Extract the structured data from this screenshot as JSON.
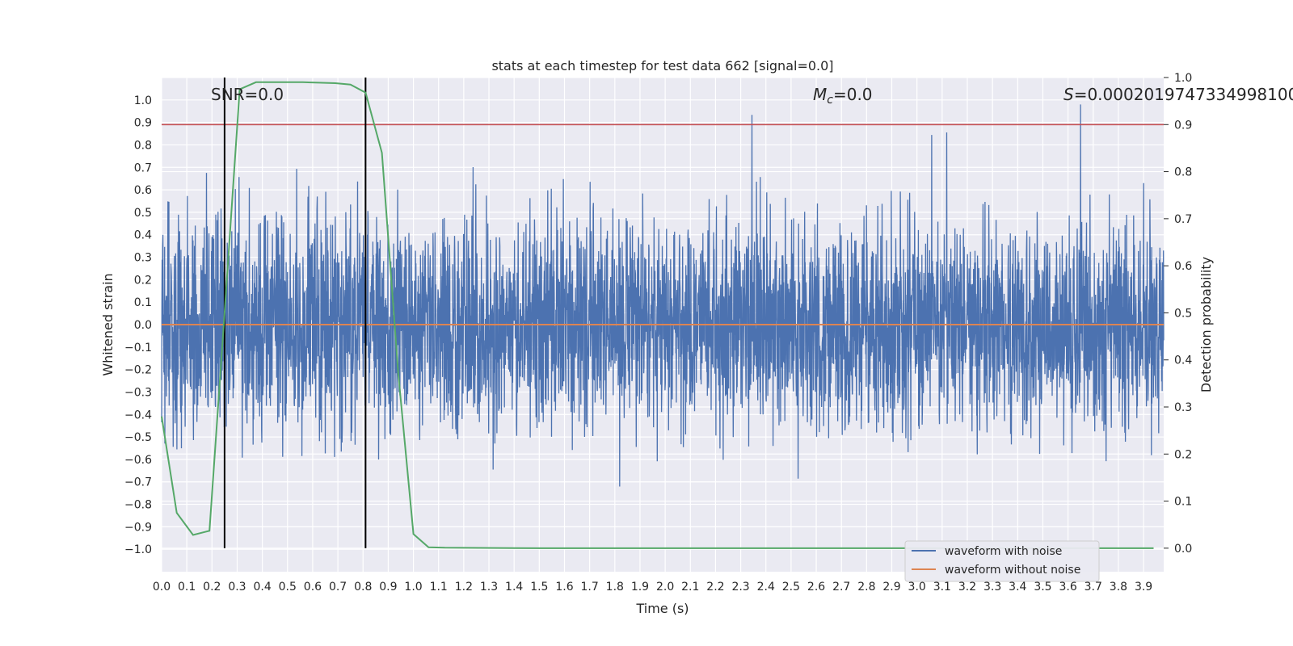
{
  "chart_data": {
    "type": "line",
    "title": "stats at each timestep for test data 662 [signal=0.0]",
    "xlabel": "Time (s)",
    "ylabel": "Whitened strain",
    "y2label": "Detection probability",
    "xlim": [
      0.0,
      3.98
    ],
    "ylim": [
      -1.1,
      1.1
    ],
    "y2lim": [
      -0.05,
      1.0
    ],
    "x_ticks": [
      "0.0",
      "0.1",
      "0.2",
      "0.3",
      "0.4",
      "0.5",
      "0.6",
      "0.7",
      "0.8",
      "0.9",
      "1.0",
      "1.1",
      "1.2",
      "1.3",
      "1.4",
      "1.5",
      "1.6",
      "1.7",
      "1.8",
      "1.9",
      "2.0",
      "2.1",
      "2.2",
      "2.3",
      "2.4",
      "2.5",
      "2.6",
      "2.7",
      "2.8",
      "2.9",
      "3.0",
      "3.1",
      "3.2",
      "3.3",
      "3.4",
      "3.5",
      "3.6",
      "3.7",
      "3.8",
      "3.9"
    ],
    "y_ticks": [
      "1.0",
      "0.9",
      "0.8",
      "0.7",
      "0.6",
      "0.5",
      "0.4",
      "0.3",
      "0.2",
      "0.1",
      "0.0",
      "−0.1",
      "−0.2",
      "−0.3",
      "−0.4",
      "−0.5",
      "−0.6",
      "−0.7",
      "−0.8",
      "−0.9",
      "−1.0"
    ],
    "y2_ticks": [
      "1.0",
      "0.9",
      "0.8",
      "0.7",
      "0.6",
      "0.5",
      "0.4",
      "0.3",
      "0.2",
      "0.1",
      "0.0"
    ],
    "annotations": {
      "snr": "SNR=0.0",
      "mc_symbol": "M",
      "mc_sub": "c",
      "mc_value": "=0.0",
      "s_symbol": "S",
      "s_value": "=0.0002019747334998100"
    },
    "threshold": 0.9,
    "vlines": [
      0.25,
      0.81
    ],
    "noise_amplitude": 0.35,
    "series": [
      {
        "name": "waveform with noise",
        "color": "#4c72b0",
        "axis": "left"
      },
      {
        "name": "waveform without noise",
        "color": "#dd8452",
        "axis": "left",
        "value": 0.0
      },
      {
        "name": "detection probability",
        "color": "#55a868",
        "axis": "right",
        "x": [
          0.0,
          0.06,
          0.125,
          0.19,
          0.25,
          0.31,
          0.375,
          0.44,
          0.5,
          0.56,
          0.625,
          0.69,
          0.75,
          0.81,
          0.875,
          0.94,
          1.0,
          1.06,
          1.125,
          1.5,
          2.0,
          2.5,
          3.0,
          3.5,
          3.94
        ],
        "y": [
          0.28,
          0.075,
          0.028,
          0.037,
          0.5,
          0.975,
          0.99,
          0.99,
          0.99,
          0.99,
          0.989,
          0.988,
          0.985,
          0.968,
          0.84,
          0.37,
          0.03,
          0.002,
          0.001,
          0.0,
          0.0,
          0.0,
          0.0,
          0.0,
          0.0
        ]
      }
    ],
    "threshold_color": "#c44e52",
    "legend": {
      "position": "lower-right",
      "entries": [
        "waveform with noise",
        "waveform without noise"
      ]
    }
  }
}
